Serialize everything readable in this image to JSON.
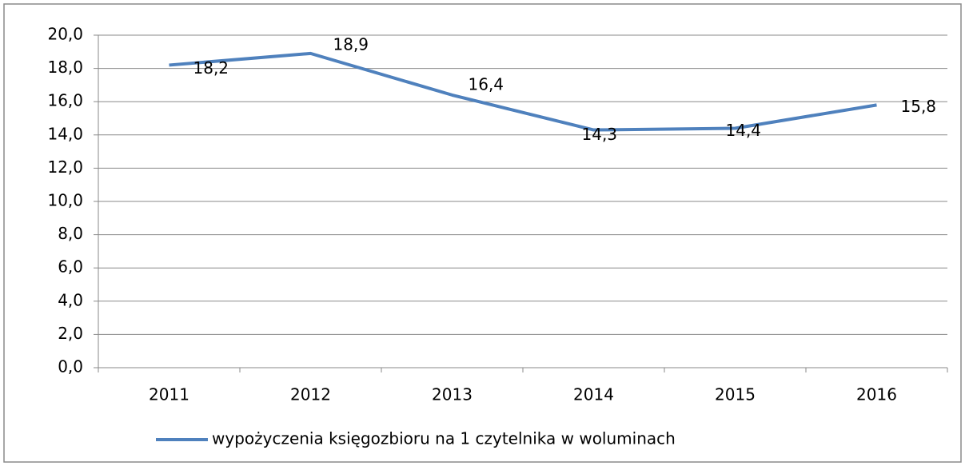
{
  "chart_data": {
    "type": "line",
    "categories": [
      "2011",
      "2012",
      "2013",
      "2014",
      "2015",
      "2016"
    ],
    "series": [
      {
        "name": "wypożyczenia księgozbioru na 1 czytelnika w woluminach",
        "color": "#4f81bd",
        "values": [
          18.2,
          18.9,
          16.4,
          14.3,
          14.4,
          15.8
        ],
        "value_labels": [
          "18,2",
          "18,9",
          "16,4",
          "14,3",
          "14,4",
          "15,8"
        ]
      }
    ],
    "ylim": [
      0,
      20
    ],
    "yticks": [
      {
        "value": 0,
        "label": "0,0"
      },
      {
        "value": 2,
        "label": "2,0"
      },
      {
        "value": 4,
        "label": "4,0"
      },
      {
        "value": 6,
        "label": "6,0"
      },
      {
        "value": 8,
        "label": "8,0"
      },
      {
        "value": 10,
        "label": "10,0"
      },
      {
        "value": 12,
        "label": "12,0"
      },
      {
        "value": 14,
        "label": "14,0"
      },
      {
        "value": 16,
        "label": "16,0"
      },
      {
        "value": 18,
        "label": "18,0"
      },
      {
        "value": 20,
        "label": "20,0"
      }
    ],
    "grid": true,
    "legend": "bottom"
  }
}
